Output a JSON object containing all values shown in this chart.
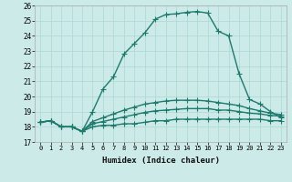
{
  "xlabel": "Humidex (Indice chaleur)",
  "ylabel": "",
  "background_color": "#cceae7",
  "line_color": "#1f7a6e",
  "xlim": [
    -0.5,
    23.5
  ],
  "ylim": [
    17,
    26
  ],
  "yticks": [
    17,
    18,
    19,
    20,
    21,
    22,
    23,
    24,
    25,
    26
  ],
  "xticks": [
    0,
    1,
    2,
    3,
    4,
    5,
    6,
    7,
    8,
    9,
    10,
    11,
    12,
    13,
    14,
    15,
    16,
    17,
    18,
    19,
    20,
    21,
    22,
    23
  ],
  "series": [
    [
      18.3,
      18.4,
      18.0,
      18.0,
      17.7,
      19.0,
      20.5,
      21.3,
      22.8,
      23.5,
      24.2,
      25.1,
      25.4,
      25.45,
      25.55,
      25.6,
      25.5,
      24.3,
      24.0,
      21.5,
      19.8,
      19.5,
      19.0,
      18.6
    ],
    [
      18.3,
      18.4,
      18.0,
      18.0,
      17.7,
      18.0,
      18.1,
      18.1,
      18.2,
      18.2,
      18.3,
      18.4,
      18.4,
      18.5,
      18.5,
      18.5,
      18.5,
      18.5,
      18.5,
      18.5,
      18.5,
      18.5,
      18.4,
      18.4
    ],
    [
      18.3,
      18.4,
      18.0,
      18.0,
      17.7,
      18.2,
      18.35,
      18.5,
      18.65,
      18.8,
      18.95,
      19.05,
      19.1,
      19.15,
      19.2,
      19.2,
      19.2,
      19.1,
      19.1,
      19.0,
      18.9,
      18.85,
      18.75,
      18.7
    ],
    [
      18.3,
      18.4,
      18.0,
      18.0,
      17.7,
      18.35,
      18.6,
      18.85,
      19.1,
      19.3,
      19.5,
      19.6,
      19.7,
      19.75,
      19.75,
      19.75,
      19.7,
      19.6,
      19.5,
      19.4,
      19.2,
      19.05,
      18.9,
      18.8
    ]
  ],
  "linewidths": [
    1.0,
    1.0,
    1.0,
    1.0
  ],
  "markersizes": [
    2.5,
    2.5,
    2.5,
    2.5
  ]
}
